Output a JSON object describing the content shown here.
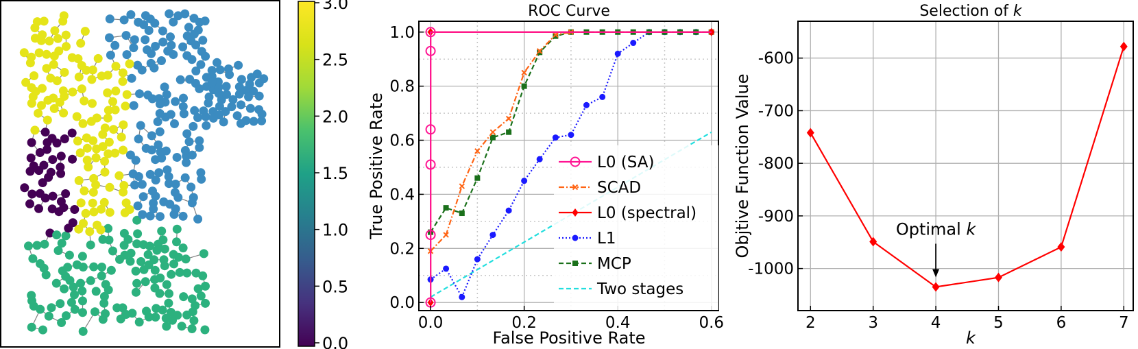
{
  "network_panel": {
    "edge_color": "#808080",
    "cluster_colors": [
      "#440154",
      "#3b8bc0",
      "#2cb17e",
      "#e5e419"
    ]
  },
  "colorbar": {
    "ticks": [
      "0.0",
      "0.5",
      "1.0",
      "1.5",
      "2.0",
      "2.5",
      "3.0"
    ],
    "colormap": "viridis",
    "range": [
      0,
      3
    ]
  },
  "chart_data": [
    {
      "type": "line",
      "title": "ROC Curve",
      "xlabel": "False Positive Rate",
      "ylabel": "True Positive Rate",
      "xlim": [
        -0.025,
        0.615
      ],
      "ylim": [
        -0.03,
        1.04
      ],
      "xticks": [
        0.0,
        0.2,
        0.4,
        0.6
      ],
      "xtick_labels": [
        "0.0",
        "0.2",
        "0.4",
        "0.6"
      ],
      "yticks": [
        0.0,
        0.2,
        0.4,
        0.6,
        0.8,
        1.0
      ],
      "ytick_labels": [
        "0.0",
        "0.2",
        "0.4",
        "0.6",
        "0.8",
        "1.0"
      ],
      "grid": true,
      "legend_placement": "lower-right",
      "series": [
        {
          "name": "L0 (SA)",
          "color": "#ff1493",
          "style": "solid",
          "marker": "open-circle",
          "points": [
            [
              0.0,
              0.0
            ],
            [
              0.0,
              0.25
            ],
            [
              0.0,
              0.51
            ],
            [
              0.0,
              0.64
            ],
            [
              0.0,
              0.93
            ],
            [
              0.0,
              1.0
            ],
            [
              0.6,
              1.0
            ]
          ]
        },
        {
          "name": "SCAD",
          "color": "#ff6414",
          "style": "dashdot",
          "marker": "x",
          "points": [
            [
              0.0,
              0.19
            ],
            [
              0.033,
              0.25
            ],
            [
              0.067,
              0.43
            ],
            [
              0.1,
              0.56
            ],
            [
              0.133,
              0.63
            ],
            [
              0.167,
              0.68
            ],
            [
              0.2,
              0.85
            ],
            [
              0.233,
              0.93
            ],
            [
              0.267,
              0.99
            ],
            [
              0.3,
              1.0
            ],
            [
              0.6,
              1.0
            ]
          ]
        },
        {
          "name": "L0 (spectral)",
          "color": "#ff0000",
          "style": "solid",
          "marker": "diamond",
          "points": [
            [
              0.0,
              0.0
            ],
            [
              0.0,
              1.0
            ],
            [
              0.6,
              1.0
            ]
          ]
        },
        {
          "name": "L1",
          "color": "#1a1aff",
          "style": "dotted",
          "marker": "circle",
          "points": [
            [
              0.0,
              0.085
            ],
            [
              0.033,
              0.125
            ],
            [
              0.067,
              0.02
            ],
            [
              0.1,
              0.16
            ],
            [
              0.133,
              0.25
            ],
            [
              0.167,
              0.34
            ],
            [
              0.2,
              0.45
            ],
            [
              0.233,
              0.53
            ],
            [
              0.267,
              0.61
            ],
            [
              0.3,
              0.62
            ],
            [
              0.333,
              0.73
            ],
            [
              0.367,
              0.76
            ],
            [
              0.4,
              0.92
            ],
            [
              0.433,
              0.96
            ],
            [
              0.467,
              1.0
            ],
            [
              0.5,
              1.0
            ],
            [
              0.533,
              1.0
            ],
            [
              0.567,
              1.0
            ],
            [
              0.6,
              1.0
            ]
          ]
        },
        {
          "name": "MCP",
          "color": "#1a701a",
          "style": "dashed",
          "marker": "square",
          "points": [
            [
              0.0,
              0.26
            ],
            [
              0.033,
              0.35
            ],
            [
              0.067,
              0.33
            ],
            [
              0.1,
              0.46
            ],
            [
              0.133,
              0.61
            ],
            [
              0.167,
              0.63
            ],
            [
              0.2,
              0.8
            ],
            [
              0.233,
              0.925
            ],
            [
              0.267,
              0.985
            ],
            [
              0.3,
              1.0
            ],
            [
              0.333,
              1.0
            ],
            [
              0.367,
              1.0
            ],
            [
              0.4,
              1.0
            ],
            [
              0.433,
              1.0
            ],
            [
              0.467,
              1.0
            ],
            [
              0.5,
              1.0
            ],
            [
              0.533,
              1.0
            ],
            [
              0.567,
              1.0
            ],
            [
              0.6,
              1.0
            ]
          ]
        },
        {
          "name": "Two stages",
          "color": "#22dede",
          "style": "dashed",
          "marker": "none",
          "points": [
            [
              0.0,
              0.02
            ],
            [
              0.6,
              0.63
            ]
          ]
        }
      ]
    },
    {
      "type": "line",
      "title_text": "Selection of ",
      "title_italic": "k",
      "xlabel": "k",
      "ylabel": "Objtive Function Value",
      "xlim": [
        1.8,
        7.15
      ],
      "ylim": [
        -1080,
        -530
      ],
      "xticks": [
        2,
        3,
        4,
        5,
        6,
        7
      ],
      "xtick_labels": [
        "2",
        "3",
        "4",
        "5",
        "6",
        "7"
      ],
      "yticks": [
        -1000,
        -900,
        -800,
        -700,
        -600
      ],
      "ytick_labels": [
        "-1000",
        "-900",
        "-800",
        "-700",
        "-600"
      ],
      "grid": true,
      "series": [
        {
          "color": "#ff0000",
          "marker": "diamond",
          "x": [
            2,
            3,
            4,
            5,
            6,
            7
          ],
          "y": [
            -742,
            -949,
            -1035,
            -1017,
            -959,
            -578
          ]
        }
      ],
      "annotation": {
        "text": "Optimal ",
        "italic": "k",
        "x": 4,
        "y": -1035
      }
    }
  ]
}
